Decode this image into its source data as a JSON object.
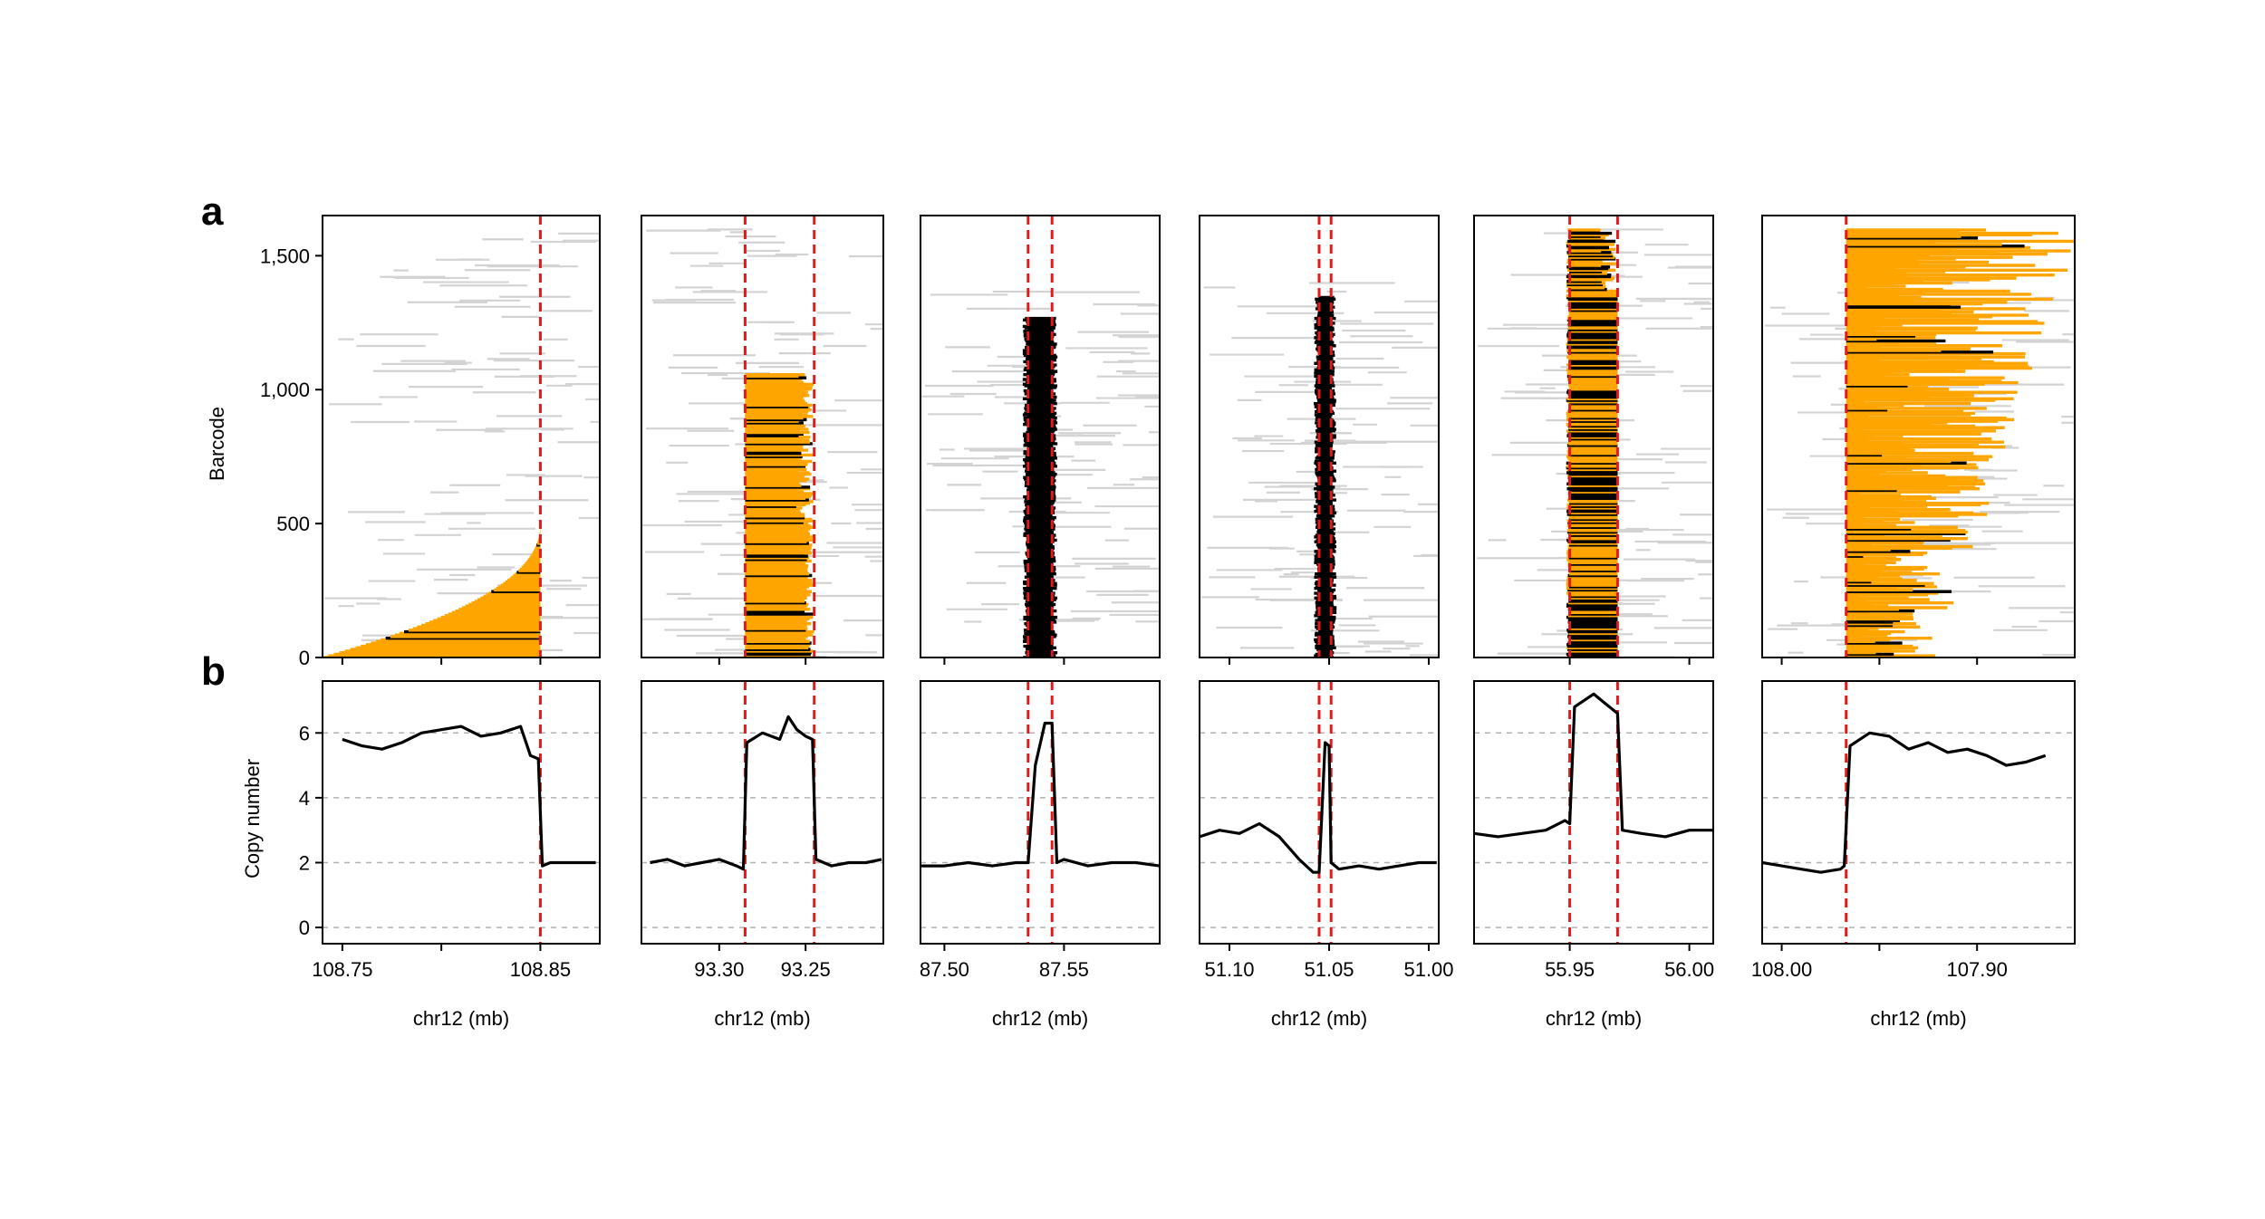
{
  "panel_labels": [
    "a",
    "b"
  ],
  "colors": {
    "left_orange": "#FFA500",
    "spanning_black": "#000000",
    "outside_grey": "#D3D3D3",
    "breakpoint_red": "#E31A1C",
    "copy_number_line": "#000000",
    "gridline": "#B0B0B0"
  },
  "chart_data": [
    {
      "type": "scatter",
      "description_panel": "a",
      "ylabel": "Barcode",
      "ylim": [
        0,
        1650
      ],
      "yticks": [
        0,
        500,
        1000,
        1500
      ],
      "ytick_labels": [
        "0",
        "500",
        "1,000",
        "1,500"
      ],
      "columns": [
        {
          "xlabel": "chr12 (mb)",
          "xlim": [
            108.74,
            108.88
          ],
          "xticks": [
            108.75,
            108.8,
            108.85
          ],
          "xtick_labels": [
            "108.75",
            "",
            "108.85"
          ],
          "breakpoints": [
            108.85
          ],
          "spanned_barcodes": 500,
          "spanned_pattern": "left_tail",
          "dominant_color": "orange",
          "grey_barcodes_max": 1600
        },
        {
          "xlabel": "chr12 (mb)",
          "xlim": [
            93.345,
            93.205
          ],
          "xticks": [
            93.3,
            93.25
          ],
          "xtick_labels": [
            "93.30",
            "93.25"
          ],
          "breakpoints": [
            93.285,
            93.245
          ],
          "spanned_barcodes": 1060,
          "spanned_pattern": "ramp",
          "dominant_color": "orange",
          "grey_barcodes_max": 1600
        },
        {
          "xlabel": "chr12 (mb)",
          "xlim": [
            87.49,
            87.59
          ],
          "xticks": [
            87.5,
            87.55
          ],
          "xtick_labels": [
            "87.50",
            "87.55"
          ],
          "breakpoints": [
            87.535,
            87.545
          ],
          "spanned_barcodes": 1270,
          "spanned_pattern": "column",
          "dominant_color": "black",
          "grey_barcodes_max": 1380
        },
        {
          "xlabel": "chr12 (mb)",
          "xlim": [
            51.115,
            50.995
          ],
          "xticks": [
            51.1,
            51.05,
            51.0
          ],
          "xtick_labels": [
            "51.10",
            "51.05",
            "51.00"
          ],
          "breakpoints": [
            51.055,
            51.049
          ],
          "spanned_barcodes": 1350,
          "spanned_pattern": "column",
          "dominant_color": "black",
          "grey_barcodes_max": 1400
        },
        {
          "xlabel": "chr12 (mb)",
          "xlim": [
            55.91,
            56.01
          ],
          "xticks": [
            55.95,
            56.0
          ],
          "xtick_labels": [
            "55.95",
            "56.00"
          ],
          "breakpoints": [
            55.95,
            55.97
          ],
          "spanned_barcodes": 1600,
          "spanned_pattern": "column",
          "dominant_color": "mixed",
          "grey_barcodes_max": 1600
        },
        {
          "xlabel": "chr12 (mb)",
          "xlim": [
            108.01,
            107.85
          ],
          "xticks": [
            108.0,
            107.95,
            107.9
          ],
          "xtick_labels": [
            "108.00",
            "",
            "107.90"
          ],
          "breakpoints": [
            107.967
          ],
          "spanned_barcodes": 1600,
          "spanned_pattern": "right_fan",
          "dominant_color": "orange",
          "grey_barcodes_max": 1400
        }
      ]
    },
    {
      "type": "line",
      "description_panel": "b",
      "ylabel": "Copy number",
      "ylim": [
        -0.5,
        7.6
      ],
      "yticks": [
        0,
        2,
        4,
        6
      ],
      "ytick_labels": [
        "0",
        "2",
        "4",
        "6"
      ],
      "dashed_gridlines_at": [
        0,
        2,
        4,
        6
      ],
      "series": [
        {
          "xlim": [
            108.74,
            108.88
          ],
          "breakpoints": [
            108.85
          ],
          "x": [
            108.75,
            108.76,
            108.77,
            108.78,
            108.79,
            108.8,
            108.81,
            108.82,
            108.83,
            108.84,
            108.845,
            108.849,
            108.851,
            108.855,
            108.86,
            108.87,
            108.878
          ],
          "values": [
            5.8,
            5.6,
            5.5,
            5.7,
            6.0,
            6.1,
            6.2,
            5.9,
            6.0,
            6.2,
            5.3,
            5.2,
            1.9,
            2.0,
            2.0,
            2.0,
            2.0
          ]
        },
        {
          "xlim": [
            93.345,
            93.205
          ],
          "breakpoints": [
            93.285,
            93.245
          ],
          "x": [
            93.34,
            93.33,
            93.32,
            93.31,
            93.3,
            93.29,
            93.286,
            93.284,
            93.275,
            93.265,
            93.26,
            93.255,
            93.25,
            93.246,
            93.244,
            93.235,
            93.225,
            93.215,
            93.206
          ],
          "values": [
            2.0,
            2.1,
            1.9,
            2.0,
            2.1,
            1.9,
            1.8,
            5.7,
            6.0,
            5.8,
            6.5,
            6.1,
            5.9,
            5.8,
            2.1,
            1.9,
            2.0,
            2.0,
            2.1
          ]
        },
        {
          "xlim": [
            87.49,
            87.59
          ],
          "breakpoints": [
            87.535,
            87.545
          ],
          "x": [
            87.49,
            87.5,
            87.51,
            87.52,
            87.53,
            87.535,
            87.538,
            87.542,
            87.545,
            87.547,
            87.55,
            87.56,
            87.57,
            87.58,
            87.59
          ],
          "values": [
            1.9,
            1.9,
            2.0,
            1.9,
            2.0,
            2.0,
            5.0,
            6.3,
            6.3,
            2.0,
            2.1,
            1.9,
            2.0,
            2.0,
            1.9
          ]
        },
        {
          "xlim": [
            51.115,
            50.995
          ],
          "breakpoints": [
            51.055,
            51.049
          ],
          "x": [
            51.115,
            51.105,
            51.095,
            51.085,
            51.075,
            51.065,
            51.058,
            51.055,
            51.052,
            51.05,
            51.049,
            51.045,
            51.035,
            51.025,
            51.015,
            51.005,
            50.996
          ],
          "values": [
            2.8,
            3.0,
            2.9,
            3.2,
            2.8,
            2.1,
            1.7,
            1.7,
            5.7,
            5.6,
            2.0,
            1.8,
            1.9,
            1.8,
            1.9,
            2.0,
            2.0
          ]
        },
        {
          "xlim": [
            55.91,
            56.01
          ],
          "breakpoints": [
            55.95,
            55.97
          ],
          "x": [
            55.91,
            55.92,
            55.93,
            55.94,
            55.948,
            55.95,
            55.952,
            55.96,
            55.965,
            55.97,
            55.972,
            55.98,
            55.99,
            56.0,
            56.01
          ],
          "values": [
            2.9,
            2.8,
            2.9,
            3.0,
            3.3,
            3.2,
            6.8,
            7.2,
            6.9,
            6.6,
            3.0,
            2.9,
            2.8,
            3.0,
            3.0
          ]
        },
        {
          "xlim": [
            108.01,
            107.85
          ],
          "breakpoints": [
            107.967
          ],
          "x": [
            108.01,
            108.0,
            107.99,
            107.98,
            107.97,
            107.968,
            107.965,
            107.955,
            107.945,
            107.935,
            107.925,
            107.915,
            107.905,
            107.895,
            107.885,
            107.875,
            107.865
          ],
          "values": [
            2.0,
            1.9,
            1.8,
            1.7,
            1.8,
            1.9,
            5.6,
            6.0,
            5.9,
            5.5,
            5.7,
            5.4,
            5.5,
            5.3,
            5.0,
            5.1,
            5.3
          ]
        }
      ]
    }
  ]
}
